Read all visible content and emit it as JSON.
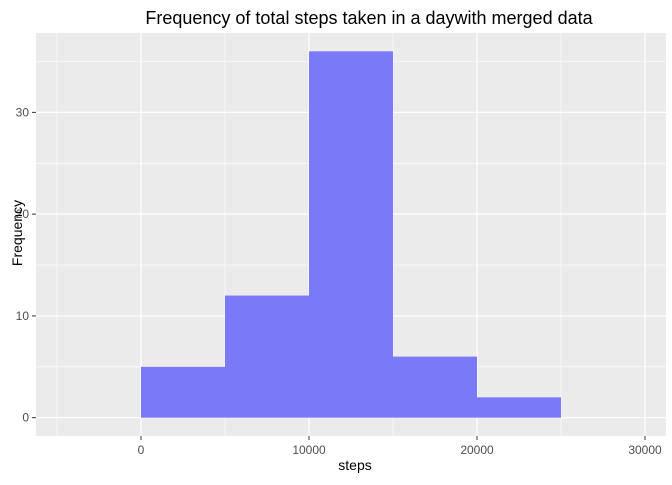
{
  "chart_data": {
    "type": "bar",
    "title": "Frequency of total steps taken in a daywith merged data",
    "xlabel": "steps",
    "ylabel": "Frequency",
    "xlim": [
      -6250,
      31250
    ],
    "ylim": [
      -1.8,
      37.8
    ],
    "xticks": [
      0,
      10000,
      20000,
      30000
    ],
    "xtick_labels": [
      "0",
      "10000",
      "20000",
      "30000"
    ],
    "yticks": [
      0,
      10,
      20,
      30
    ],
    "ytick_labels": [
      "0",
      "10",
      "20",
      "30"
    ],
    "grid": true,
    "bin_width": 5000,
    "bins": [
      {
        "start": 0,
        "end": 5000,
        "count": 5
      },
      {
        "start": 5000,
        "end": 10000,
        "count": 12
      },
      {
        "start": 10000,
        "end": 15000,
        "count": 36
      },
      {
        "start": 15000,
        "end": 20000,
        "count": 6
      },
      {
        "start": 20000,
        "end": 25000,
        "count": 2
      }
    ],
    "colors": {
      "panel_bg": "#ebebeb",
      "grid_major": "#ffffff",
      "bar_fill": "#7a7af8"
    }
  }
}
